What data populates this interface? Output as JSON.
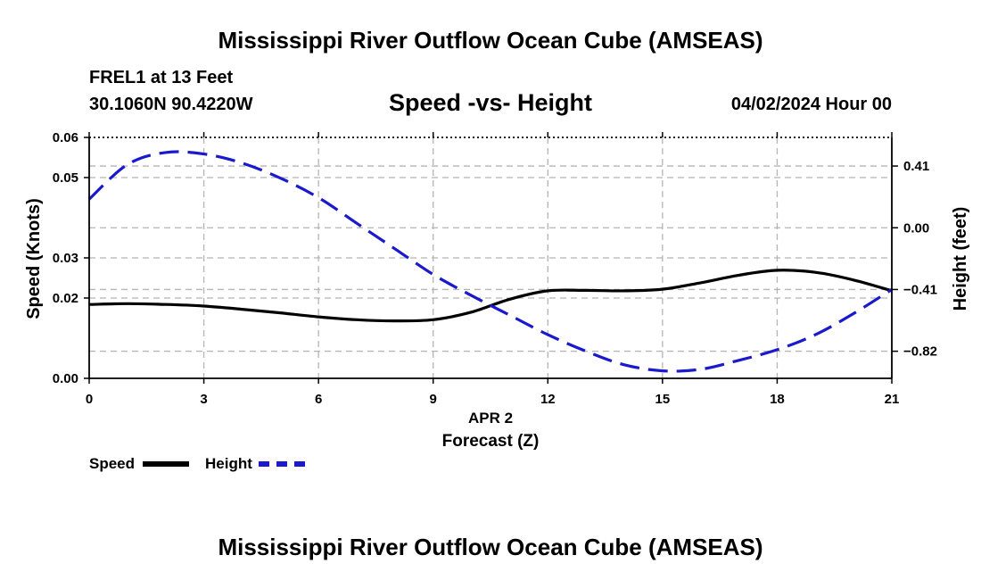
{
  "header": {
    "main_title": "Mississippi River Outflow Ocean Cube (AMSEAS)",
    "station": "FREL1 at 13 Feet",
    "coords": "30.1060N  90.4220W",
    "chart_title": "Speed -vs- Height",
    "datetime": "04/02/2024 Hour 00"
  },
  "footer": {
    "title": "Mississippi River Outflow Ocean Cube (AMSEAS)"
  },
  "legend": {
    "speed_label": "Speed",
    "height_label": "Height"
  },
  "colors": {
    "speed": "#000000",
    "height": "#1a1acc",
    "grid": "#b4b4b4"
  },
  "chart_data": {
    "type": "line",
    "title": "Speed -vs- Height",
    "xlabel": "Forecast (Z)",
    "xlabel_date": "APR 2",
    "ylabel": "Speed (Knots)",
    "ylabel_right": "Height (feet)",
    "xlim": [
      0,
      21
    ],
    "ylim": [
      0,
      0.06
    ],
    "ylim_right": [
      -1.0,
      0.6
    ],
    "x_ticks": [
      0,
      3,
      6,
      9,
      12,
      15,
      18,
      21
    ],
    "x_tick_labels": [
      "0",
      "3",
      "6",
      "9",
      "12",
      "15",
      "18",
      "21"
    ],
    "y_ticks": [
      0,
      0.02,
      0.03,
      0.05,
      0.06
    ],
    "y_tick_labels": [
      "0.00",
      "0.02",
      "0.03",
      "0.05",
      "0.06"
    ],
    "y_right_ticks": [
      0.41,
      0.0,
      -0.41,
      -0.82
    ],
    "y_right_tick_labels": [
      "0.41",
      "0.00",
      "-0.41",
      "-0.82"
    ],
    "grid": true,
    "series": [
      {
        "name": "Speed",
        "axis": "left",
        "style": "solid",
        "x": [
          0,
          1,
          2,
          3,
          4,
          5,
          6,
          7,
          8,
          9,
          10,
          11,
          12,
          13,
          14,
          15,
          16,
          17,
          18,
          19,
          20,
          21
        ],
        "values": [
          0.0184,
          0.0186,
          0.0184,
          0.018,
          0.0172,
          0.0163,
          0.0153,
          0.0146,
          0.0143,
          0.0146,
          0.0165,
          0.0197,
          0.0218,
          0.0219,
          0.0218,
          0.0222,
          0.0238,
          0.0257,
          0.0269,
          0.0264,
          0.0245,
          0.0218
        ]
      },
      {
        "name": "Height",
        "axis": "right",
        "style": "dashed",
        "x": [
          0,
          1,
          2,
          3,
          4,
          5,
          6,
          7,
          8,
          9,
          10,
          11,
          12,
          13,
          14,
          15,
          16,
          17,
          18,
          19,
          20,
          21
        ],
        "values": [
          0.19,
          0.42,
          0.5,
          0.49,
          0.43,
          0.33,
          0.2,
          0.03,
          -0.14,
          -0.31,
          -0.45,
          -0.58,
          -0.71,
          -0.82,
          -0.91,
          -0.95,
          -0.94,
          -0.88,
          -0.81,
          -0.71,
          -0.57,
          -0.41
        ]
      }
    ]
  }
}
